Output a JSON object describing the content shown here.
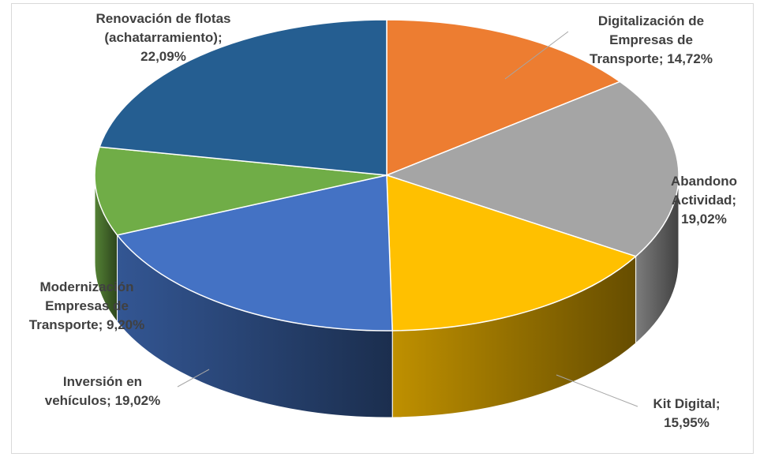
{
  "chart_data": {
    "type": "pie",
    "categories": [
      "Digitalización de Empresas de Transporte",
      "Abandono Actividad",
      "Kit Digital",
      "Inversión en vehículos",
      "Modernización Empresas de Transporte",
      "Renovación de flotas (achatarramiento)"
    ],
    "values": [
      14.72,
      19.02,
      15.95,
      19.02,
      9.2,
      22.09
    ],
    "value_labels": [
      "14,72%",
      "19,02%",
      "15,95%",
      "19,02%",
      "9,20%",
      "22,09%"
    ],
    "label_separator": ";",
    "colors": [
      "#ed7d31",
      "#a5a5a5",
      "#ffc000",
      "#4472c4",
      "#70ad47",
      "#255e91"
    ],
    "three_d": true
  }
}
